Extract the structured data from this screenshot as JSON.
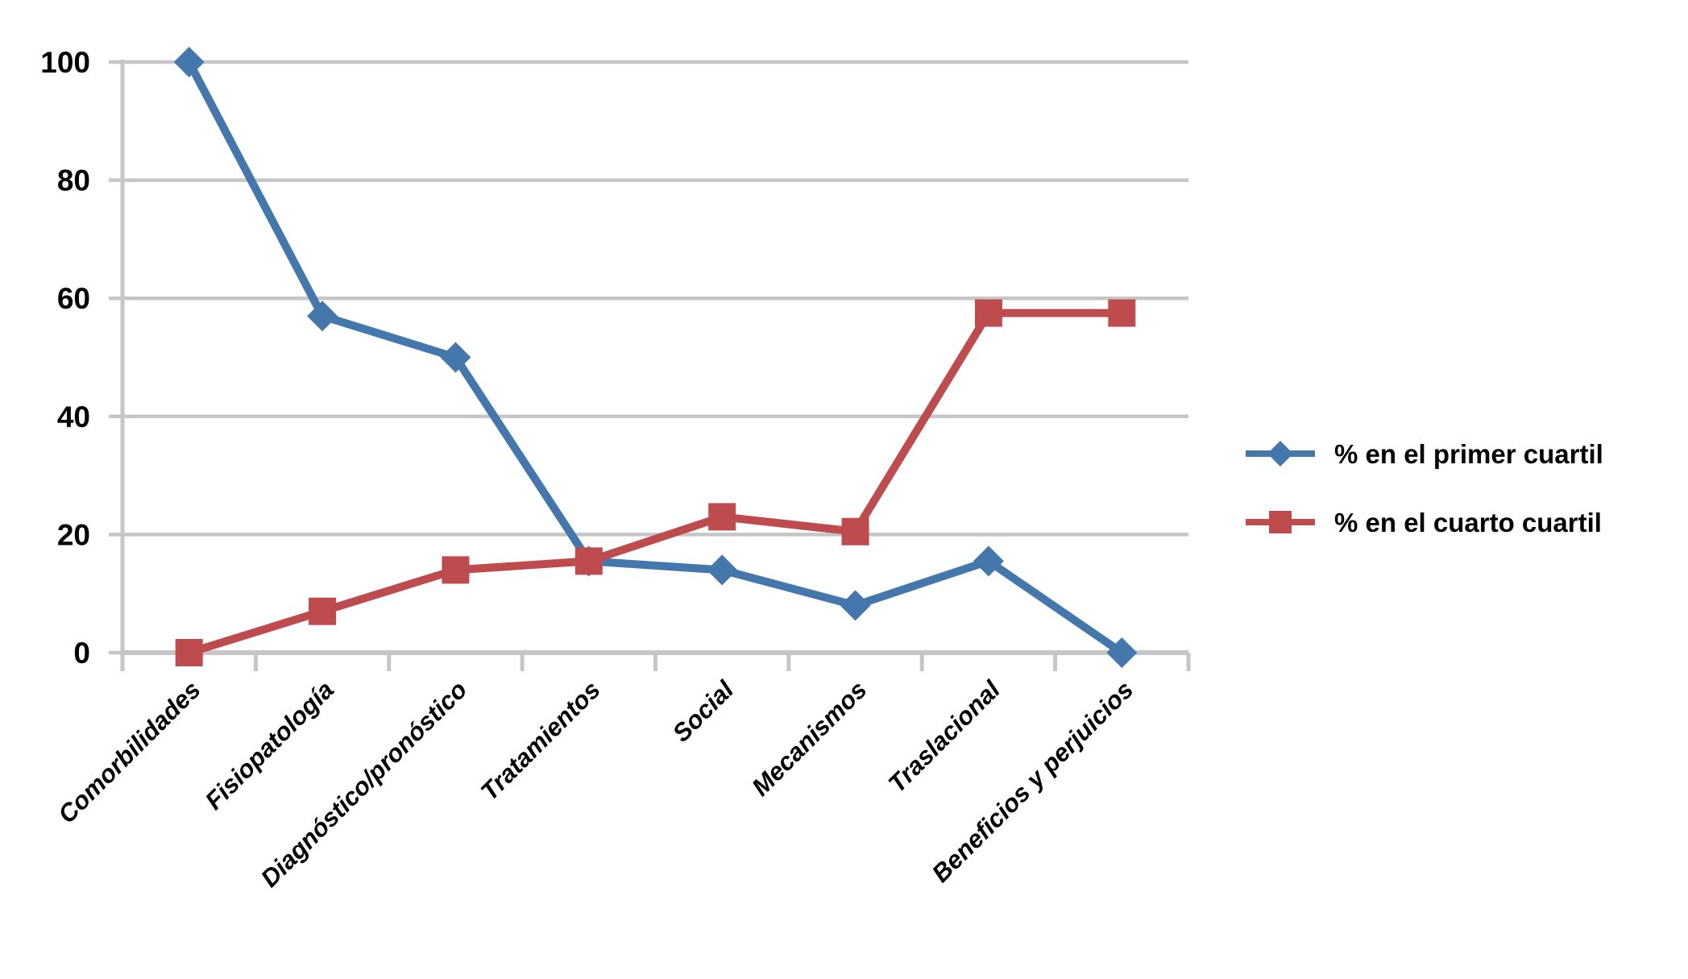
{
  "chart_data": {
    "type": "line",
    "categories": [
      "Comorbilidades",
      "Fisiopatología",
      "Diagnóstico/pronóstico",
      "Tratamientos",
      "Social",
      "Mecanismos",
      "Traslacional",
      "Beneficios y perjuicios"
    ],
    "series": [
      {
        "name": "% en el primer cuartil",
        "marker": "diamond",
        "color": "#4478AC",
        "values": [
          100,
          57,
          50,
          15.5,
          14,
          8,
          15.5,
          0
        ]
      },
      {
        "name": "% en el cuarto cuartil",
        "marker": "square",
        "color": "#BE4B4D",
        "values": [
          0,
          7,
          14,
          15.5,
          23,
          20.5,
          57.5,
          57.5
        ]
      }
    ],
    "title": "",
    "xlabel": "",
    "ylabel": "",
    "ylim": [
      0,
      100
    ],
    "yticks": [
      0,
      20,
      40,
      60,
      80,
      100
    ],
    "ytick_labels": [
      "0",
      "20",
      "40",
      "60",
      "80",
      "100"
    ],
    "grid": true,
    "legend_position": "right",
    "colors": {
      "gridline": "#C6C6C6",
      "axis": "#C6C6C6",
      "text": "#000000",
      "background": "#FFFFFF"
    }
  }
}
